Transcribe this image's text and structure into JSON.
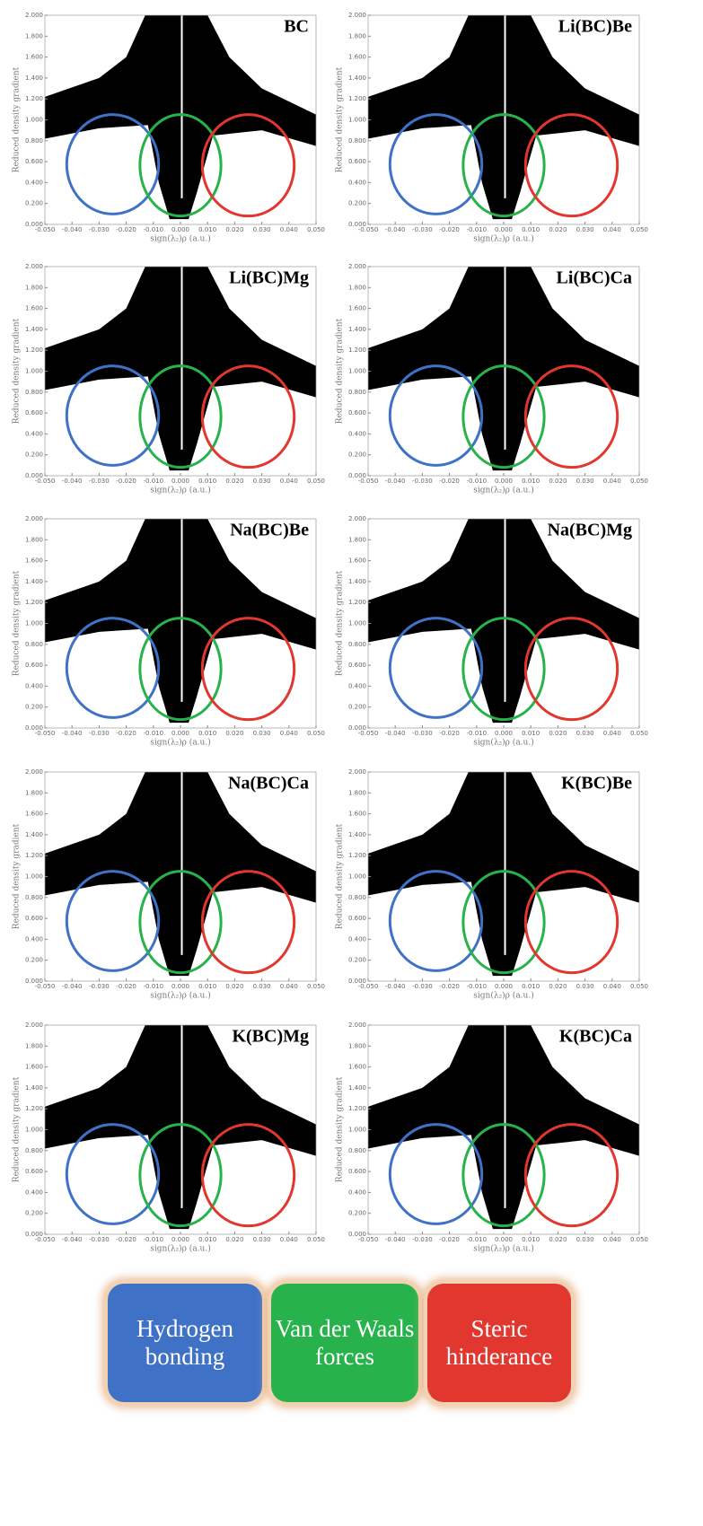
{
  "chart_data": [
    {
      "type": "scatter",
      "title": "BC",
      "xlabel": "sign(λ₂)ρ (a.u.)",
      "ylabel": "Reduced density gradient",
      "xlim": [
        -0.05,
        0.05
      ],
      "ylim": [
        0,
        2
      ],
      "xticks": [
        {
          "value": -0.05,
          "label": "-0.050"
        },
        {
          "value": -0.04,
          "label": "-0.040"
        },
        {
          "value": -0.03,
          "label": "-0.030"
        },
        {
          "value": -0.02,
          "label": "-0.020"
        },
        {
          "value": -0.01,
          "label": "-0.010"
        },
        {
          "value": 0,
          "label": "0.000"
        },
        {
          "value": 0.01,
          "label": "0.010"
        },
        {
          "value": 0.02,
          "label": "0.020"
        },
        {
          "value": 0.03,
          "label": "0.030"
        },
        {
          "value": 0.04,
          "label": "0.040"
        },
        {
          "value": 0.05,
          "label": "0.050"
        }
      ],
      "yticks": [
        {
          "value": 0,
          "label": "0.000"
        },
        {
          "value": 0.2,
          "label": "0.200"
        },
        {
          "value": 0.4,
          "label": "0.400"
        },
        {
          "value": 0.6,
          "label": "0.600"
        },
        {
          "value": 0.8,
          "label": "0.800"
        },
        {
          "value": 1,
          "label": "1.000"
        },
        {
          "value": 1.2,
          "label": "1.200"
        },
        {
          "value": 1.4,
          "label": "1.400"
        },
        {
          "value": 1.6,
          "label": "1.600"
        },
        {
          "value": 1.8,
          "label": "1.800"
        },
        {
          "value": 2,
          "label": "2.000"
        }
      ]
    },
    {
      "type": "scatter",
      "title": "Li(BC)Be",
      "xlabel": "sign(λ₂)ρ (a.u.)",
      "ylabel": "Reduced density gradient",
      "xlim": [
        -0.05,
        0.05
      ],
      "ylim": [
        0,
        2
      ],
      "xticks": [
        {
          "value": -0.05,
          "label": "-0.050"
        },
        {
          "value": -0.04,
          "label": "-0.040"
        },
        {
          "value": -0.03,
          "label": "-0.030"
        },
        {
          "value": -0.02,
          "label": "-0.020"
        },
        {
          "value": -0.01,
          "label": "-0.010"
        },
        {
          "value": 0,
          "label": "0.000"
        },
        {
          "value": 0.01,
          "label": "0.010"
        },
        {
          "value": 0.02,
          "label": "0.020"
        },
        {
          "value": 0.03,
          "label": "0.030"
        },
        {
          "value": 0.04,
          "label": "0.040"
        },
        {
          "value": 0.05,
          "label": "0.050"
        }
      ],
      "yticks": [
        {
          "value": 0,
          "label": "0.000"
        },
        {
          "value": 0.2,
          "label": "0.200"
        },
        {
          "value": 0.4,
          "label": "0.400"
        },
        {
          "value": 0.6,
          "label": "0.600"
        },
        {
          "value": 0.8,
          "label": "0.800"
        },
        {
          "value": 1,
          "label": "1.000"
        },
        {
          "value": 1.2,
          "label": "1.200"
        },
        {
          "value": 1.4,
          "label": "1.400"
        },
        {
          "value": 1.6,
          "label": "1.600"
        },
        {
          "value": 1.8,
          "label": "1.800"
        },
        {
          "value": 2,
          "label": "2.000"
        }
      ]
    },
    {
      "type": "scatter",
      "title": "Li(BC)Mg",
      "xlabel": "sign(λ₂)ρ (a.u.)",
      "ylabel": "Reduced density gradient",
      "xlim": [
        -0.05,
        0.05
      ],
      "ylim": [
        0,
        2
      ],
      "xticks": [
        {
          "value": -0.05,
          "label": "-0.050"
        },
        {
          "value": -0.04,
          "label": "-0.040"
        },
        {
          "value": -0.03,
          "label": "-0.030"
        },
        {
          "value": -0.02,
          "label": "-0.020"
        },
        {
          "value": -0.01,
          "label": "-0.010"
        },
        {
          "value": 0,
          "label": "0.000"
        },
        {
          "value": 0.01,
          "label": "0.010"
        },
        {
          "value": 0.02,
          "label": "0.020"
        },
        {
          "value": 0.03,
          "label": "0.030"
        },
        {
          "value": 0.04,
          "label": "0.040"
        },
        {
          "value": 0.05,
          "label": "0.050"
        }
      ],
      "yticks": [
        {
          "value": 0,
          "label": "0.000"
        },
        {
          "value": 0.2,
          "label": "0.200"
        },
        {
          "value": 0.4,
          "label": "0.400"
        },
        {
          "value": 0.6,
          "label": "0.600"
        },
        {
          "value": 0.8,
          "label": "0.800"
        },
        {
          "value": 1,
          "label": "1.000"
        },
        {
          "value": 1.2,
          "label": "1.200"
        },
        {
          "value": 1.4,
          "label": "1.400"
        },
        {
          "value": 1.6,
          "label": "1.600"
        },
        {
          "value": 1.8,
          "label": "1.800"
        },
        {
          "value": 2,
          "label": "2.000"
        }
      ]
    },
    {
      "type": "scatter",
      "title": "Li(BC)Ca",
      "xlabel": "sign(λ₂)ρ (a.u.)",
      "ylabel": "Reduced density gradient",
      "xlim": [
        -0.05,
        0.05
      ],
      "ylim": [
        0,
        2
      ],
      "xticks": [
        {
          "value": -0.05,
          "label": "-0.050"
        },
        {
          "value": -0.04,
          "label": "-0.040"
        },
        {
          "value": -0.03,
          "label": "-0.030"
        },
        {
          "value": -0.02,
          "label": "-0.020"
        },
        {
          "value": -0.01,
          "label": "-0.010"
        },
        {
          "value": 0,
          "label": "0.000"
        },
        {
          "value": 0.01,
          "label": "0.010"
        },
        {
          "value": 0.02,
          "label": "0.020"
        },
        {
          "value": 0.03,
          "label": "0.030"
        },
        {
          "value": 0.04,
          "label": "0.040"
        },
        {
          "value": 0.05,
          "label": "0.050"
        }
      ],
      "yticks": [
        {
          "value": 0,
          "label": "0.000"
        },
        {
          "value": 0.2,
          "label": "0.200"
        },
        {
          "value": 0.4,
          "label": "0.400"
        },
        {
          "value": 0.6,
          "label": "0.600"
        },
        {
          "value": 0.8,
          "label": "0.800"
        },
        {
          "value": 1,
          "label": "1.000"
        },
        {
          "value": 1.2,
          "label": "1.200"
        },
        {
          "value": 1.4,
          "label": "1.400"
        },
        {
          "value": 1.6,
          "label": "1.600"
        },
        {
          "value": 1.8,
          "label": "1.800"
        },
        {
          "value": 2,
          "label": "2.000"
        }
      ]
    },
    {
      "type": "scatter",
      "title": "Na(BC)Be",
      "xlabel": "sign(λ₂)ρ (a.u.)",
      "ylabel": "Reduced density gradient",
      "xlim": [
        -0.05,
        0.05
      ],
      "ylim": [
        0,
        2
      ],
      "xticks": [
        {
          "value": -0.05,
          "label": "-0.050"
        },
        {
          "value": -0.04,
          "label": "-0.040"
        },
        {
          "value": -0.03,
          "label": "-0.030"
        },
        {
          "value": -0.02,
          "label": "-0.020"
        },
        {
          "value": -0.01,
          "label": "-0.010"
        },
        {
          "value": 0,
          "label": "0.000"
        },
        {
          "value": 0.01,
          "label": "0.010"
        },
        {
          "value": 0.02,
          "label": "0.020"
        },
        {
          "value": 0.03,
          "label": "0.030"
        },
        {
          "value": 0.04,
          "label": "0.040"
        },
        {
          "value": 0.05,
          "label": "0.050"
        }
      ],
      "yticks": [
        {
          "value": 0,
          "label": "0.000"
        },
        {
          "value": 0.2,
          "label": "0.200"
        },
        {
          "value": 0.4,
          "label": "0.400"
        },
        {
          "value": 0.6,
          "label": "0.600"
        },
        {
          "value": 0.8,
          "label": "0.800"
        },
        {
          "value": 1,
          "label": "1.000"
        },
        {
          "value": 1.2,
          "label": "1.200"
        },
        {
          "value": 1.4,
          "label": "1.400"
        },
        {
          "value": 1.6,
          "label": "1.600"
        },
        {
          "value": 1.8,
          "label": "1.800"
        },
        {
          "value": 2,
          "label": "2.000"
        }
      ]
    },
    {
      "type": "scatter",
      "title": "Na(BC)Mg",
      "xlabel": "sign(λ₂)ρ (a.u.)",
      "ylabel": "Reduced density gradient",
      "xlim": [
        -0.05,
        0.05
      ],
      "ylim": [
        0,
        2
      ],
      "xticks": [
        {
          "value": -0.05,
          "label": "-0.050"
        },
        {
          "value": -0.04,
          "label": "-0.040"
        },
        {
          "value": -0.03,
          "label": "-0.030"
        },
        {
          "value": -0.02,
          "label": "-0.020"
        },
        {
          "value": -0.01,
          "label": "-0.010"
        },
        {
          "value": 0,
          "label": "0.000"
        },
        {
          "value": 0.01,
          "label": "0.010"
        },
        {
          "value": 0.02,
          "label": "0.020"
        },
        {
          "value": 0.03,
          "label": "0.030"
        },
        {
          "value": 0.04,
          "label": "0.040"
        },
        {
          "value": 0.05,
          "label": "0.050"
        }
      ],
      "yticks": [
        {
          "value": 0,
          "label": "0.000"
        },
        {
          "value": 0.2,
          "label": "0.200"
        },
        {
          "value": 0.4,
          "label": "0.400"
        },
        {
          "value": 0.6,
          "label": "0.600"
        },
        {
          "value": 0.8,
          "label": "0.800"
        },
        {
          "value": 1,
          "label": "1.000"
        },
        {
          "value": 1.2,
          "label": "1.200"
        },
        {
          "value": 1.4,
          "label": "1.400"
        },
        {
          "value": 1.6,
          "label": "1.600"
        },
        {
          "value": 1.8,
          "label": "1.800"
        },
        {
          "value": 2,
          "label": "2.000"
        }
      ]
    },
    {
      "type": "scatter",
      "title": "Na(BC)Ca",
      "xlabel": "sign(λ₂)ρ (a.u.)",
      "ylabel": "Reduced density gradient",
      "xlim": [
        -0.05,
        0.05
      ],
      "ylim": [
        0,
        2
      ],
      "xticks": [
        {
          "value": -0.05,
          "label": "-0.050"
        },
        {
          "value": -0.04,
          "label": "-0.040"
        },
        {
          "value": -0.03,
          "label": "-0.030"
        },
        {
          "value": -0.02,
          "label": "-0.020"
        },
        {
          "value": -0.01,
          "label": "-0.010"
        },
        {
          "value": 0,
          "label": "0.000"
        },
        {
          "value": 0.01,
          "label": "0.010"
        },
        {
          "value": 0.02,
          "label": "0.020"
        },
        {
          "value": 0.03,
          "label": "0.030"
        },
        {
          "value": 0.04,
          "label": "0.040"
        },
        {
          "value": 0.05,
          "label": "0.050"
        }
      ],
      "yticks": [
        {
          "value": 0,
          "label": "0.000"
        },
        {
          "value": 0.2,
          "label": "0.200"
        },
        {
          "value": 0.4,
          "label": "0.400"
        },
        {
          "value": 0.6,
          "label": "0.600"
        },
        {
          "value": 0.8,
          "label": "0.800"
        },
        {
          "value": 1,
          "label": "1.000"
        },
        {
          "value": 1.2,
          "label": "1.200"
        },
        {
          "value": 1.4,
          "label": "1.400"
        },
        {
          "value": 1.6,
          "label": "1.600"
        },
        {
          "value": 1.8,
          "label": "1.800"
        },
        {
          "value": 2,
          "label": "2.000"
        }
      ]
    },
    {
      "type": "scatter",
      "title": "K(BC)Be",
      "xlabel": "sign(λ₂)ρ (a.u.)",
      "ylabel": "Reduced density gradient",
      "xlim": [
        -0.05,
        0.05
      ],
      "ylim": [
        0,
        2
      ],
      "xticks": [
        {
          "value": -0.05,
          "label": "-0.050"
        },
        {
          "value": -0.04,
          "label": "-0.040"
        },
        {
          "value": -0.03,
          "label": "-0.030"
        },
        {
          "value": -0.02,
          "label": "-0.020"
        },
        {
          "value": -0.01,
          "label": "-0.010"
        },
        {
          "value": 0,
          "label": "0.000"
        },
        {
          "value": 0.01,
          "label": "0.010"
        },
        {
          "value": 0.02,
          "label": "0.020"
        },
        {
          "value": 0.03,
          "label": "0.030"
        },
        {
          "value": 0.04,
          "label": "0.040"
        },
        {
          "value": 0.05,
          "label": "0.050"
        }
      ],
      "yticks": [
        {
          "value": 0,
          "label": "0.000"
        },
        {
          "value": 0.2,
          "label": "0.200"
        },
        {
          "value": 0.4,
          "label": "0.400"
        },
        {
          "value": 0.6,
          "label": "0.600"
        },
        {
          "value": 0.8,
          "label": "0.800"
        },
        {
          "value": 1,
          "label": "1.000"
        },
        {
          "value": 1.2,
          "label": "1.200"
        },
        {
          "value": 1.4,
          "label": "1.400"
        },
        {
          "value": 1.6,
          "label": "1.600"
        },
        {
          "value": 1.8,
          "label": "1.800"
        },
        {
          "value": 2,
          "label": "2.000"
        }
      ]
    },
    {
      "type": "scatter",
      "title": "K(BC)Mg",
      "xlabel": "sign(λ₂)ρ (a.u.)",
      "ylabel": "Reduced density gradient",
      "xlim": [
        -0.05,
        0.05
      ],
      "ylim": [
        0,
        2
      ],
      "xticks": [
        {
          "value": -0.05,
          "label": "-0.050"
        },
        {
          "value": -0.04,
          "label": "-0.040"
        },
        {
          "value": -0.03,
          "label": "-0.030"
        },
        {
          "value": -0.02,
          "label": "-0.020"
        },
        {
          "value": -0.01,
          "label": "-0.010"
        },
        {
          "value": 0,
          "label": "0.000"
        },
        {
          "value": 0.01,
          "label": "0.010"
        },
        {
          "value": 0.02,
          "label": "0.020"
        },
        {
          "value": 0.03,
          "label": "0.030"
        },
        {
          "value": 0.04,
          "label": "0.040"
        },
        {
          "value": 0.05,
          "label": "0.050"
        }
      ],
      "yticks": [
        {
          "value": 0,
          "label": "0.000"
        },
        {
          "value": 0.2,
          "label": "0.200"
        },
        {
          "value": 0.4,
          "label": "0.400"
        },
        {
          "value": 0.6,
          "label": "0.600"
        },
        {
          "value": 0.8,
          "label": "0.800"
        },
        {
          "value": 1,
          "label": "1.000"
        },
        {
          "value": 1.2,
          "label": "1.200"
        },
        {
          "value": 1.4,
          "label": "1.400"
        },
        {
          "value": 1.6,
          "label": "1.600"
        },
        {
          "value": 1.8,
          "label": "1.800"
        },
        {
          "value": 2,
          "label": "2.000"
        }
      ]
    },
    {
      "type": "scatter",
      "title": "K(BC)Ca",
      "xlabel": "sign(λ₂)ρ (a.u.)",
      "ylabel": "Reduced density gradient",
      "xlim": [
        -0.05,
        0.05
      ],
      "ylim": [
        0,
        2
      ],
      "xticks": [
        {
          "value": -0.05,
          "label": "-0.050"
        },
        {
          "value": -0.04,
          "label": "-0.040"
        },
        {
          "value": -0.03,
          "label": "-0.030"
        },
        {
          "value": -0.02,
          "label": "-0.020"
        },
        {
          "value": -0.01,
          "label": "-0.010"
        },
        {
          "value": 0,
          "label": "0.000"
        },
        {
          "value": 0.01,
          "label": "0.010"
        },
        {
          "value": 0.02,
          "label": "0.020"
        },
        {
          "value": 0.03,
          "label": "0.030"
        },
        {
          "value": 0.04,
          "label": "0.040"
        },
        {
          "value": 0.05,
          "label": "0.050"
        }
      ],
      "yticks": [
        {
          "value": 0,
          "label": "0.000"
        },
        {
          "value": 0.2,
          "label": "0.200"
        },
        {
          "value": 0.4,
          "label": "0.400"
        },
        {
          "value": 0.6,
          "label": "0.600"
        },
        {
          "value": 0.8,
          "label": "0.800"
        },
        {
          "value": 1,
          "label": "1.000"
        },
        {
          "value": 1.2,
          "label": "1.200"
        },
        {
          "value": 1.4,
          "label": "1.400"
        },
        {
          "value": 1.6,
          "label": "1.600"
        },
        {
          "value": 1.8,
          "label": "1.800"
        },
        {
          "value": 2,
          "label": "2.000"
        }
      ]
    }
  ],
  "legend": [
    {
      "label": "Hydrogen bonding",
      "color": "#3f72c6",
      "xlim": [
        -0.034,
        -0.016
      ],
      "ylim": [
        0.1,
        1.05
      ]
    },
    {
      "label": "Van der Waals forces",
      "color": "#28b24b",
      "xlim": [
        -0.007,
        0.007
      ],
      "ylim": [
        0.08,
        1.05
      ]
    },
    {
      "label": "Steric hinderance",
      "color": "#e2372f",
      "xlim": [
        0.016,
        0.034
      ],
      "ylim": [
        0.08,
        1.05
      ]
    }
  ]
}
